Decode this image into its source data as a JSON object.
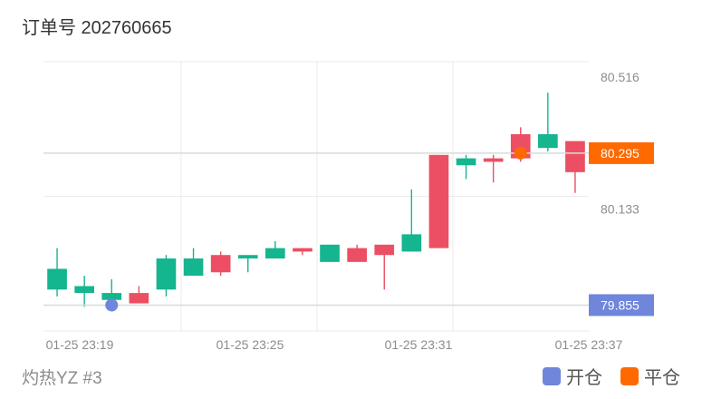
{
  "header": {
    "title": "订单号 202760665"
  },
  "footer": {
    "label": "灼热YZ #3"
  },
  "legend": {
    "items": [
      {
        "label": "开仓",
        "color": "#6f86db"
      },
      {
        "label": "平仓",
        "color": "#ff6a00"
      }
    ]
  },
  "colors": {
    "up": "#14b58f",
    "down": "#ec4f63",
    "grid": "#ebebeb",
    "refline": "#d9d9d9"
  },
  "chart_data": {
    "type": "candlestick",
    "x_tick_labels": [
      "01-25 23:19",
      "01-25 23:25",
      "01-25 23:31",
      "01-25 23:37"
    ],
    "y_tick_labels": [
      "80.516",
      "80.133"
    ],
    "y_range": [
      79.78,
      80.56
    ],
    "candles": [
      {
        "open": 79.9,
        "close": 79.96,
        "high": 80.02,
        "low": 79.88
      },
      {
        "open": 79.89,
        "close": 79.91,
        "high": 79.94,
        "low": 79.85
      },
      {
        "open": 79.87,
        "close": 79.89,
        "high": 79.93,
        "low": 79.84
      },
      {
        "open": 79.89,
        "close": 79.86,
        "high": 79.91,
        "low": 79.86
      },
      {
        "open": 79.9,
        "close": 79.99,
        "high": 80.0,
        "low": 79.88
      },
      {
        "open": 79.94,
        "close": 79.99,
        "high": 80.02,
        "low": 79.94
      },
      {
        "open": 80.0,
        "close": 79.95,
        "high": 80.01,
        "low": 79.94
      },
      {
        "open": 79.99,
        "close": 80.0,
        "high": 80.0,
        "low": 79.95
      },
      {
        "open": 79.99,
        "close": 80.02,
        "high": 80.04,
        "low": 79.99
      },
      {
        "open": 80.02,
        "close": 80.01,
        "high": 80.02,
        "low": 80.0
      },
      {
        "open": 79.98,
        "close": 80.03,
        "high": 80.03,
        "low": 79.98
      },
      {
        "open": 80.02,
        "close": 79.98,
        "high": 80.03,
        "low": 79.98
      },
      {
        "open": 80.03,
        "close": 80.0,
        "high": 80.03,
        "low": 79.9
      },
      {
        "open": 80.01,
        "close": 80.06,
        "high": 80.19,
        "low": 80.01
      },
      {
        "open": 80.29,
        "close": 80.02,
        "high": 80.29,
        "low": 80.02
      },
      {
        "open": 80.26,
        "close": 80.28,
        "high": 80.29,
        "low": 80.22
      },
      {
        "open": 80.28,
        "close": 80.27,
        "high": 80.29,
        "low": 80.21
      },
      {
        "open": 80.35,
        "close": 80.28,
        "high": 80.37,
        "low": 80.27
      },
      {
        "open": 80.31,
        "close": 80.35,
        "high": 80.47,
        "low": 80.3
      },
      {
        "open": 80.33,
        "close": 80.24,
        "high": 80.33,
        "low": 80.18
      }
    ],
    "open_marker": {
      "index": 2,
      "price": 79.855,
      "label": "79.855"
    },
    "close_marker": {
      "index": 17,
      "price": 80.295,
      "label": "80.295"
    }
  }
}
